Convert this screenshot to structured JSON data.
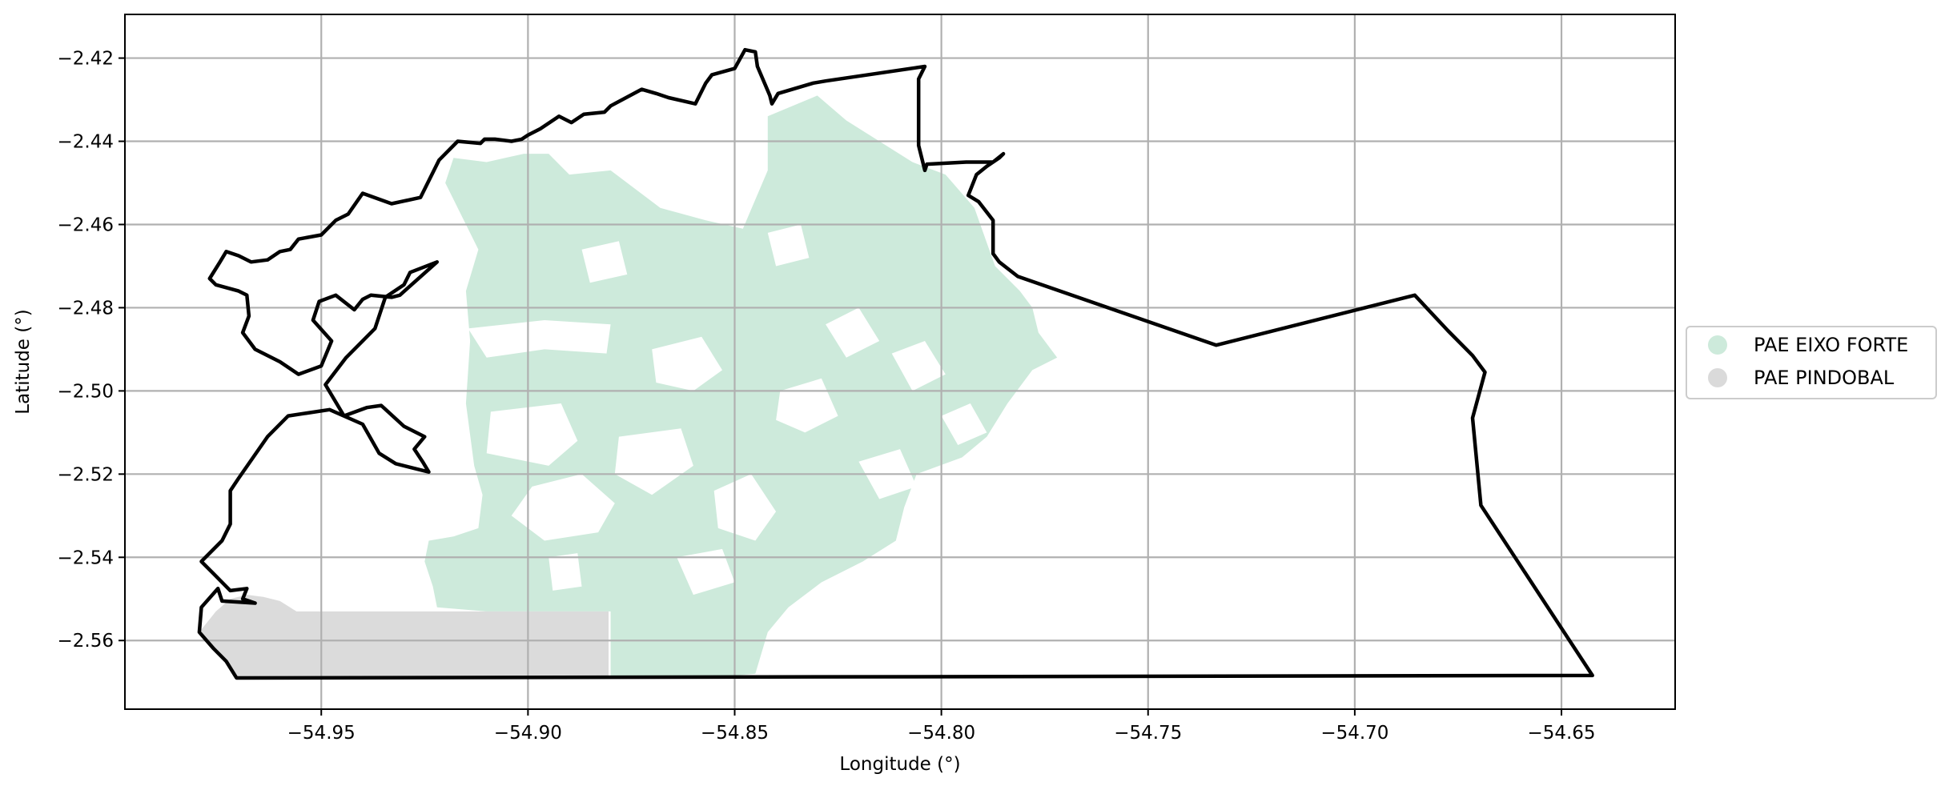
{
  "chart_data": {
    "type": "map",
    "title": "",
    "xlabel": "Longitude (°)",
    "ylabel": "Latitude (°)",
    "xlim": [
      -54.9975,
      -54.6225
    ],
    "ylim": [
      -2.5765,
      -2.4095
    ],
    "grid": true,
    "legend_position": "right-center",
    "xticks": [
      -54.95,
      -54.9,
      -54.85,
      -54.8,
      -54.75,
      -54.7,
      -54.65
    ],
    "xtick_labels": [
      "−54.95",
      "−54.90",
      "−54.85",
      "−54.80",
      "−54.75",
      "−54.70",
      "−54.65"
    ],
    "yticks": [
      -2.42,
      -2.44,
      -2.46,
      -2.48,
      -2.5,
      -2.52,
      -2.54,
      -2.56
    ],
    "ytick_labels": [
      "−2.42",
      "−2.44",
      "−2.46",
      "−2.48",
      "−2.50",
      "−2.52",
      "−2.54",
      "−2.56"
    ],
    "series": [
      {
        "name": "PAE EIXO FORTE",
        "color": "#cdeadb"
      },
      {
        "name": "PAE PINDOBAL",
        "color": "#dadada"
      }
    ],
    "boundary_color": "#000000",
    "boundary": [
      [
        -54.9705,
        -2.569
      ],
      [
        -54.6425,
        -2.5684
      ],
      [
        -54.6695,
        -2.5275
      ],
      [
        -54.6715,
        -2.5065
      ],
      [
        -54.6685,
        -2.4955
      ],
      [
        -54.6715,
        -2.4915
      ],
      [
        -54.6775,
        -2.4855
      ],
      [
        -54.6855,
        -2.477
      ],
      [
        -54.7335,
        -2.489
      ],
      [
        -54.7815,
        -2.4725
      ],
      [
        -54.786,
        -2.469
      ],
      [
        -54.7875,
        -2.467
      ],
      [
        -54.7875,
        -2.459
      ],
      [
        -54.791,
        -2.4545
      ],
      [
        -54.7935,
        -2.453
      ],
      [
        -54.7915,
        -2.448
      ],
      [
        -54.789,
        -2.446
      ],
      [
        -54.786,
        -2.444
      ],
      [
        -54.785,
        -2.443
      ],
      [
        -54.7875,
        -2.445
      ],
      [
        -54.794,
        -2.445
      ],
      [
        -54.8035,
        -2.4455
      ],
      [
        -54.804,
        -2.447
      ],
      [
        -54.8055,
        -2.441
      ],
      [
        -54.8055,
        -2.425
      ],
      [
        -54.804,
        -2.422
      ],
      [
        -54.828,
        -2.4255
      ],
      [
        -54.831,
        -2.426
      ],
      [
        -54.8395,
        -2.4285
      ],
      [
        -54.841,
        -2.431
      ],
      [
        -54.8415,
        -2.429
      ],
      [
        -54.8445,
        -2.422
      ],
      [
        -54.845,
        -2.4185
      ],
      [
        -54.8475,
        -2.418
      ],
      [
        -54.85,
        -2.4225
      ],
      [
        -54.8555,
        -2.424
      ],
      [
        -54.857,
        -2.426
      ],
      [
        -54.8595,
        -2.431
      ],
      [
        -54.866,
        -2.4295
      ],
      [
        -54.869,
        -2.4285
      ],
      [
        -54.8725,
        -2.4275
      ],
      [
        -54.88,
        -2.4315
      ],
      [
        -54.8815,
        -2.433
      ],
      [
        -54.8865,
        -2.4335
      ],
      [
        -54.8895,
        -2.4355
      ],
      [
        -54.8925,
        -2.434
      ],
      [
        -54.897,
        -2.437
      ],
      [
        -54.9,
        -2.4385
      ],
      [
        -54.9015,
        -2.4395
      ],
      [
        -54.904,
        -2.44
      ],
      [
        -54.908,
        -2.4395
      ],
      [
        -54.9105,
        -2.4395
      ],
      [
        -54.9115,
        -2.4405
      ],
      [
        -54.917,
        -2.44
      ],
      [
        -54.9215,
        -2.4445
      ],
      [
        -54.926,
        -2.4535
      ],
      [
        -54.933,
        -2.455
      ],
      [
        -54.94,
        -2.4525
      ],
      [
        -54.9435,
        -2.4575
      ],
      [
        -54.9465,
        -2.459
      ],
      [
        -54.95,
        -2.4625
      ],
      [
        -54.9555,
        -2.4635
      ],
      [
        -54.9575,
        -2.466
      ],
      [
        -54.96,
        -2.4665
      ],
      [
        -54.963,
        -2.4685
      ],
      [
        -54.967,
        -2.469
      ],
      [
        -54.97,
        -2.4675
      ],
      [
        -54.973,
        -2.4665
      ],
      [
        -54.9745,
        -2.469
      ],
      [
        -54.977,
        -2.473
      ],
      [
        -54.9755,
        -2.4745
      ],
      [
        -54.97,
        -2.476
      ],
      [
        -54.968,
        -2.477
      ],
      [
        -54.9675,
        -2.482
      ],
      [
        -54.969,
        -2.486
      ],
      [
        -54.966,
        -2.49
      ],
      [
        -54.96,
        -2.493
      ],
      [
        -54.9555,
        -2.496
      ],
      [
        -54.95,
        -2.494
      ],
      [
        -54.9475,
        -2.488
      ],
      [
        -54.952,
        -2.483
      ],
      [
        -54.9505,
        -2.4785
      ],
      [
        -54.9465,
        -2.477
      ],
      [
        -54.942,
        -2.4805
      ],
      [
        -54.94,
        -2.478
      ],
      [
        -54.938,
        -2.477
      ],
      [
        -54.933,
        -2.4775
      ],
      [
        -54.931,
        -2.477
      ],
      [
        -54.922,
        -2.469
      ],
      [
        -54.9285,
        -2.4715
      ],
      [
        -54.93,
        -2.4745
      ],
      [
        -54.9345,
        -2.4775
      ],
      [
        -54.937,
        -2.485
      ],
      [
        -54.944,
        -2.492
      ],
      [
        -54.949,
        -2.4985
      ],
      [
        -54.9445,
        -2.506
      ],
      [
        -54.939,
        -2.504
      ],
      [
        -54.9355,
        -2.5035
      ],
      [
        -54.93,
        -2.5085
      ],
      [
        -54.925,
        -2.511
      ],
      [
        -54.9275,
        -2.514
      ],
      [
        -54.9255,
        -2.517
      ],
      [
        -54.924,
        -2.5195
      ],
      [
        -54.932,
        -2.5175
      ],
      [
        -54.936,
        -2.515
      ],
      [
        -54.94,
        -2.508
      ],
      [
        -54.948,
        -2.5045
      ],
      [
        -54.958,
        -2.506
      ],
      [
        -54.963,
        -2.511
      ],
      [
        -54.97,
        -2.521
      ],
      [
        -54.972,
        -2.524
      ],
      [
        -54.972,
        -2.532
      ],
      [
        -54.974,
        -2.536
      ],
      [
        -54.979,
        -2.541
      ],
      [
        -54.976,
        -2.544
      ],
      [
        -54.972,
        -2.548
      ],
      [
        -54.968,
        -2.5475
      ],
      [
        -54.969,
        -2.55
      ],
      [
        -54.966,
        -2.551
      ],
      [
        -54.974,
        -2.5505
      ],
      [
        -54.975,
        -2.5475
      ],
      [
        -54.979,
        -2.552
      ],
      [
        -54.9795,
        -2.558
      ],
      [
        -54.976,
        -2.562
      ],
      [
        -54.973,
        -2.565
      ],
      [
        -54.9705,
        -2.569
      ]
    ],
    "boundary_note": "",
    "pindobal_polygon": [
      [
        -54.9795,
        -2.558
      ],
      [
        -54.9755,
        -2.553
      ],
      [
        -54.972,
        -2.55
      ],
      [
        -54.968,
        -2.549
      ],
      [
        -54.964,
        -2.5495
      ],
      [
        -54.96,
        -2.5505
      ],
      [
        -54.956,
        -2.553
      ],
      [
        -54.925,
        -2.553
      ],
      [
        -54.8805,
        -2.553
      ],
      [
        -54.8805,
        -2.569
      ],
      [
        -54.9705,
        -2.569
      ],
      [
        -54.973,
        -2.565
      ],
      [
        -54.976,
        -2.562
      ]
    ],
    "eixo_forte_polygon": [
      [
        -54.918,
        -2.444
      ],
      [
        -54.91,
        -2.445
      ],
      [
        -54.901,
        -2.443
      ],
      [
        -54.895,
        -2.443
      ],
      [
        -54.89,
        -2.448
      ],
      [
        -54.88,
        -2.447
      ],
      [
        -54.868,
        -2.456
      ],
      [
        -54.857,
        -2.459
      ],
      [
        -54.848,
        -2.461
      ],
      [
        -54.842,
        -2.447
      ],
      [
        -54.842,
        -2.434
      ],
      [
        -54.83,
        -2.429
      ],
      [
        -54.823,
        -2.435
      ],
      [
        -54.807,
        -2.445
      ],
      [
        -54.799,
        -2.448
      ],
      [
        -54.792,
        -2.456
      ],
      [
        -54.787,
        -2.47
      ],
      [
        -54.781,
        -2.476
      ],
      [
        -54.778,
        -2.48
      ],
      [
        -54.7765,
        -2.486
      ],
      [
        -54.772,
        -2.492
      ],
      [
        -54.778,
        -2.495
      ],
      [
        -54.784,
        -2.503
      ],
      [
        -54.789,
        -2.511
      ],
      [
        -54.795,
        -2.516
      ],
      [
        -54.806,
        -2.52
      ],
      [
        -54.809,
        -2.528
      ],
      [
        -54.811,
        -2.536
      ],
      [
        -54.819,
        -2.541
      ],
      [
        -54.829,
        -2.546
      ],
      [
        -54.837,
        -2.552
      ],
      [
        -54.842,
        -2.558
      ],
      [
        -54.845,
        -2.568
      ],
      [
        -54.856,
        -2.569
      ],
      [
        -54.88,
        -2.569
      ],
      [
        -54.88,
        -2.553
      ],
      [
        -54.91,
        -2.553
      ],
      [
        -54.922,
        -2.552
      ],
      [
        -54.923,
        -2.547
      ],
      [
        -54.925,
        -2.541
      ],
      [
        -54.924,
        -2.536
      ],
      [
        -54.918,
        -2.535
      ],
      [
        -54.912,
        -2.533
      ],
      [
        -54.911,
        -2.525
      ],
      [
        -54.913,
        -2.518
      ],
      [
        -54.915,
        -2.503
      ],
      [
        -54.914,
        -2.488
      ],
      [
        -54.915,
        -2.476
      ],
      [
        -54.912,
        -2.466
      ],
      [
        -54.917,
        -2.456
      ],
      [
        -54.92,
        -2.45
      ]
    ],
    "eixo_forte_gaps": [
      [
        [
          -54.9145,
          -2.485
        ],
        [
          -54.896,
          -2.483
        ],
        [
          -54.88,
          -2.484
        ],
        [
          -54.881,
          -2.491
        ],
        [
          -54.896,
          -2.49
        ],
        [
          -54.91,
          -2.492
        ]
      ],
      [
        [
          -54.909,
          -2.505
        ],
        [
          -54.892,
          -2.503
        ],
        [
          -54.888,
          -2.512
        ],
        [
          -54.895,
          -2.518
        ],
        [
          -54.91,
          -2.515
        ]
      ],
      [
        [
          -54.899,
          -2.523
        ],
        [
          -54.887,
          -2.52
        ],
        [
          -54.879,
          -2.527
        ],
        [
          -54.883,
          -2.534
        ],
        [
          -54.896,
          -2.536
        ],
        [
          -54.904,
          -2.53
        ]
      ],
      [
        [
          -54.878,
          -2.511
        ],
        [
          -54.863,
          -2.509
        ],
        [
          -54.86,
          -2.518
        ],
        [
          -54.87,
          -2.525
        ],
        [
          -54.879,
          -2.52
        ]
      ],
      [
        [
          -54.87,
          -2.49
        ],
        [
          -54.858,
          -2.487
        ],
        [
          -54.853,
          -2.495
        ],
        [
          -54.86,
          -2.5
        ],
        [
          -54.869,
          -2.498
        ]
      ],
      [
        [
          -54.855,
          -2.524
        ],
        [
          -54.846,
          -2.52
        ],
        [
          -54.84,
          -2.529
        ],
        [
          -54.845,
          -2.536
        ],
        [
          -54.854,
          -2.533
        ]
      ],
      [
        [
          -54.839,
          -2.5
        ],
        [
          -54.829,
          -2.497
        ],
        [
          -54.825,
          -2.506
        ],
        [
          -54.833,
          -2.51
        ],
        [
          -54.84,
          -2.507
        ]
      ],
      [
        [
          -54.828,
          -2.484
        ],
        [
          -54.82,
          -2.48
        ],
        [
          -54.815,
          -2.488
        ],
        [
          -54.823,
          -2.492
        ]
      ],
      [
        [
          -54.812,
          -2.491
        ],
        [
          -54.804,
          -2.488
        ],
        [
          -54.799,
          -2.496
        ],
        [
          -54.807,
          -2.5
        ]
      ],
      [
        [
          -54.8,
          -2.506
        ],
        [
          -54.793,
          -2.503
        ],
        [
          -54.789,
          -2.51
        ],
        [
          -54.796,
          -2.513
        ]
      ],
      [
        [
          -54.82,
          -2.517
        ],
        [
          -54.81,
          -2.514
        ],
        [
          -54.806,
          -2.523
        ],
        [
          -54.815,
          -2.526
        ]
      ],
      [
        [
          -54.842,
          -2.462
        ],
        [
          -54.834,
          -2.46
        ],
        [
          -54.832,
          -2.468
        ],
        [
          -54.84,
          -2.47
        ]
      ],
      [
        [
          -54.887,
          -2.466
        ],
        [
          -54.878,
          -2.464
        ],
        [
          -54.876,
          -2.472
        ],
        [
          -54.885,
          -2.474
        ]
      ],
      [
        [
          -54.864,
          -2.54
        ],
        [
          -54.853,
          -2.538
        ],
        [
          -54.85,
          -2.546
        ],
        [
          -54.86,
          -2.549
        ]
      ],
      [
        [
          -54.895,
          -2.54
        ],
        [
          -54.888,
          -2.539
        ],
        [
          -54.887,
          -2.547
        ],
        [
          -54.894,
          -2.548
        ]
      ]
    ]
  }
}
